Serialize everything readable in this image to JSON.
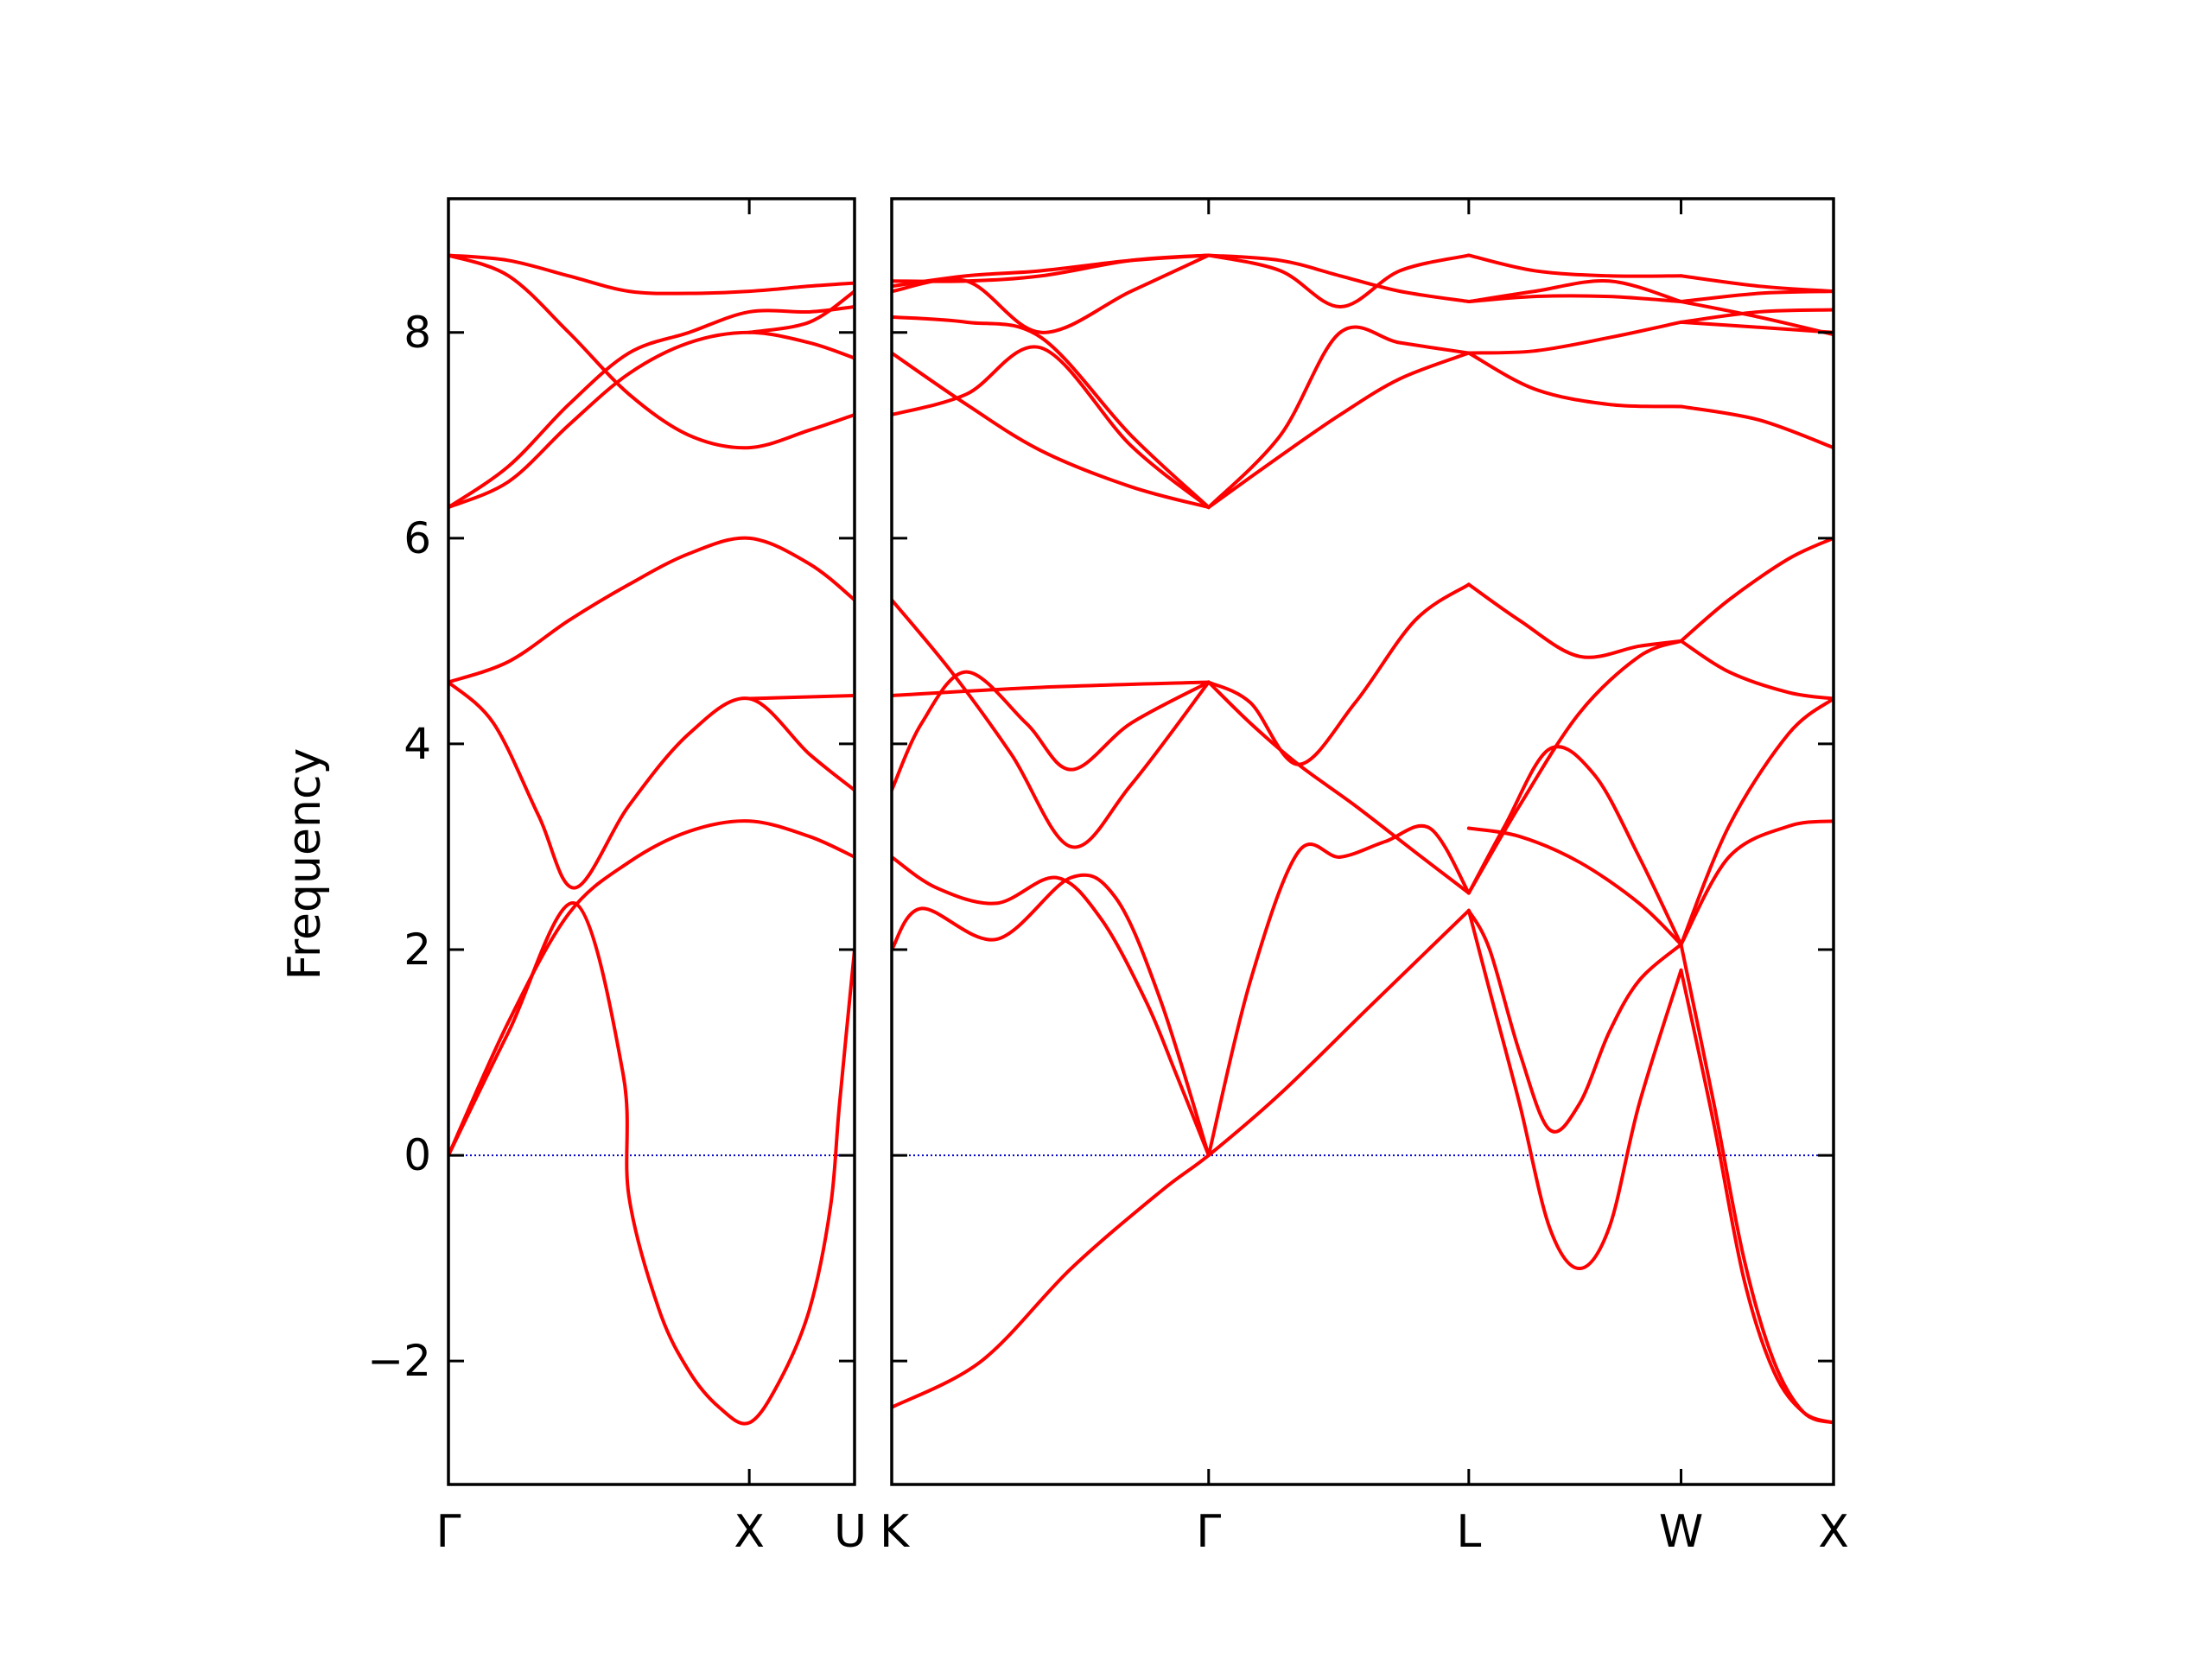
{
  "chart_data": {
    "type": "line",
    "title": "",
    "ylabel": "Frequency",
    "ylim": [
      -3.2,
      9.3
    ],
    "yticks": [
      -2,
      0,
      2,
      4,
      6,
      8
    ],
    "ytick_labels": [
      "−2",
      "0",
      "2",
      "4",
      "6",
      "8"
    ],
    "zero_line": {
      "value": 0,
      "color": "#0000cc",
      "style": "dotted"
    },
    "line_color": "#ff0000",
    "grid": false,
    "legend": "none",
    "panels": [
      {
        "name": "Gamma-X-U",
        "x_range": [
          0,
          1.35
        ],
        "high_symmetry_points": [
          {
            "label": "Γ",
            "x": 0
          },
          {
            "label": "X",
            "x": 1.0
          },
          {
            "label": "U",
            "x": 1.35
          }
        ],
        "bands": [
          {
            "x": [
              0,
              0.2,
              0.42,
              0.58,
              0.6,
              0.7,
              0.8,
              0.9,
              1.0,
              1.1,
              1.2,
              1.27,
              1.3,
              1.35
            ],
            "y": [
              0,
              1.2,
              2.45,
              0.8,
              -0.4,
              -1.5,
              -2.1,
              -2.45,
              -2.6,
              -2.2,
              -1.5,
              -0.5,
              0.5,
              2.0
            ]
          },
          {
            "x": [
              0,
              0.2,
              0.4,
              0.6,
              0.8,
              1.0,
              1.2,
              1.35
            ],
            "y": [
              0,
              1.3,
              2.35,
              2.85,
              3.15,
              3.25,
              3.1,
              2.9
            ]
          },
          {
            "x": [
              0,
              0.15,
              0.3,
              0.42,
              0.6,
              0.8,
              1.0,
              1.2,
              1.35
            ],
            "y": [
              4.6,
              4.2,
              3.3,
              2.6,
              3.4,
              4.1,
              4.44,
              3.9,
              3.55
            ]
          },
          {
            "x": [
              0,
              0.2,
              0.4,
              0.6,
              0.8,
              1.0,
              1.2,
              1.35
            ],
            "y": [
              4.6,
              4.8,
              5.2,
              5.55,
              5.85,
              6.0,
              5.75,
              5.4
            ]
          },
          {
            "x": [
              1.0,
              1.35
            ],
            "y": [
              4.44,
              4.47
            ]
          },
          {
            "x": [
              0,
              0.2,
              0.4,
              0.6,
              0.8,
              1.0,
              1.2,
              1.35
            ],
            "y": [
              6.3,
              6.55,
              7.1,
              7.6,
              7.9,
              8.0,
              7.9,
              7.75
            ]
          },
          {
            "x": [
              0,
              0.2,
              0.4,
              0.6,
              0.8,
              1.0,
              1.2,
              1.35
            ],
            "y": [
              6.3,
              6.7,
              7.3,
              7.8,
              8.0,
              8.2,
              8.2,
              8.25
            ]
          },
          {
            "x": [
              0,
              0.2,
              0.4,
              0.6,
              0.8,
              1.0,
              1.2,
              1.35
            ],
            "y": [
              8.75,
              8.55,
              8.0,
              7.4,
              7.0,
              6.88,
              7.05,
              7.2
            ]
          },
          {
            "x": [
              0,
              0.2,
              0.4,
              0.6,
              0.8,
              1.0,
              1.2,
              1.35
            ],
            "y": [
              8.75,
              8.7,
              8.55,
              8.4,
              8.38,
              8.4,
              8.45,
              8.48
            ]
          },
          {
            "x": [
              1.0,
              1.2,
              1.35
            ],
            "y": [
              8.0,
              8.1,
              8.4
            ]
          }
        ]
      },
      {
        "name": "K-Gamma-L-W-X",
        "x_range": [
          0,
          3.15
        ],
        "high_symmetry_points": [
          {
            "label": "K",
            "x": 0
          },
          {
            "label": "Γ",
            "x": 1.06
          },
          {
            "label": "L",
            "x": 1.93
          },
          {
            "label": "W",
            "x": 2.64
          },
          {
            "label": "X",
            "x": 3.15
          }
        ],
        "bands": [
          {
            "x": [
              0,
              0.3,
              0.6,
              0.9,
              1.06,
              1.3,
              1.6,
              1.93
            ],
            "y": [
              -2.45,
              -2.0,
              -1.1,
              -0.35,
              0,
              0.6,
              1.45,
              2.38
            ]
          },
          {
            "x": [
              1.93,
              2.0,
              2.1,
              2.2,
              2.3,
              2.4,
              2.5,
              2.64
            ],
            "y": [
              2.38,
              1.6,
              0.5,
              -0.7,
              -1.1,
              -0.7,
              0.5,
              1.8
            ]
          },
          {
            "x": [
              2.64,
              2.75,
              2.85,
              2.95,
              3.05,
              3.15
            ],
            "y": [
              1.8,
              0.3,
              -1.2,
              -2.1,
              -2.5,
              -2.6
            ]
          },
          {
            "x": [
              1.93,
              2.0,
              2.1,
              2.2,
              2.3,
              2.4,
              2.5,
              2.64
            ],
            "y": [
              2.38,
              2.0,
              1.0,
              0.25,
              0.5,
              1.2,
              1.7,
              2.05
            ]
          },
          {
            "x": [
              2.64,
              2.75,
              2.85,
              2.95,
              3.05,
              3.15
            ],
            "y": [
              2.05,
              0.5,
              -1.0,
              -2.0,
              -2.5,
              -2.6
            ]
          },
          {
            "x": [
              0,
              0.1,
              0.35,
              0.6,
              0.75,
              0.9,
              1.06
            ],
            "y": [
              2.0,
              2.4,
              2.1,
              2.7,
              2.5,
              1.5,
              0
            ]
          },
          {
            "x": [
              0,
              0.15,
              0.35,
              0.55,
              0.7,
              0.85,
              0.95,
              1.06
            ],
            "y": [
              2.9,
              2.6,
              2.45,
              2.7,
              2.3,
              1.5,
              0.8,
              0
            ]
          },
          {
            "x": [
              1.06,
              1.2,
              1.36,
              1.5,
              1.65,
              1.8,
              1.93
            ],
            "y": [
              0,
              1.7,
              2.95,
              2.9,
              3.05,
              3.18,
              2.55
            ]
          },
          {
            "x": [
              1.93,
              2.05,
              2.2,
              2.35,
              2.5,
              2.64
            ],
            "y": [
              2.55,
              3.2,
              3.95,
              3.7,
              2.9,
              2.05
            ]
          },
          {
            "x": [
              1.93,
              2.1,
              2.3,
              2.5,
              2.64
            ],
            "y": [
              3.18,
              3.1,
              2.85,
              2.45,
              2.05
            ]
          },
          {
            "x": [
              2.64,
              2.8,
              3.0,
              3.15
            ],
            "y": [
              2.05,
              2.9,
              3.2,
              3.25
            ]
          },
          {
            "x": [
              2.64,
              2.8,
              3.0,
              3.15
            ],
            "y": [
              2.05,
              3.2,
              4.1,
              4.44
            ]
          },
          {
            "x": [
              0,
              0.2,
              0.4,
              0.6,
              0.8,
              1.06
            ],
            "y": [
              5.4,
              4.7,
              3.9,
              3.0,
              3.6,
              4.6
            ]
          },
          {
            "x": [
              0,
              0.1,
              0.25,
              0.45,
              0.6,
              0.8,
              1.06
            ],
            "y": [
              3.55,
              4.2,
              4.7,
              4.2,
              3.75,
              4.2,
              4.6
            ]
          },
          {
            "x": [
              0,
              0.5,
              1.06
            ],
            "y": [
              4.47,
              4.55,
              4.6
            ]
          },
          {
            "x": [
              1.06,
              1.2,
              1.36,
              1.55,
              1.75,
              1.93
            ],
            "y": [
              4.6,
              4.2,
              3.8,
              3.4,
              2.95,
              2.55
            ]
          },
          {
            "x": [
              1.06,
              1.2,
              1.36,
              1.55,
              1.75,
              1.93
            ],
            "y": [
              4.6,
              4.4,
              3.8,
              4.4,
              5.2,
              5.55
            ]
          },
          {
            "x": [
              1.93,
              2.1,
              2.3,
              2.5,
              2.64
            ],
            "y": [
              5.55,
              5.2,
              4.85,
              4.95,
              5.0
            ]
          },
          {
            "x": [
              1.93,
              2.1,
              2.3,
              2.5,
              2.64
            ],
            "y": [
              2.55,
              3.4,
              4.3,
              4.85,
              5.0
            ]
          },
          {
            "x": [
              2.64,
              2.8,
              3.0,
              3.15
            ],
            "y": [
              5.0,
              5.4,
              5.8,
              6.0
            ]
          },
          {
            "x": [
              2.64,
              2.8,
              3.0,
              3.15
            ],
            "y": [
              5.0,
              4.7,
              4.5,
              4.44
            ]
          },
          {
            "x": [
              0,
              0.25,
              0.5,
              0.8,
              1.06
            ],
            "y": [
              7.2,
              7.4,
              7.85,
              6.9,
              6.3
            ]
          },
          {
            "x": [
              0,
              0.25,
              0.5,
              0.8,
              1.06
            ],
            "y": [
              7.8,
              7.3,
              6.85,
              6.5,
              6.3
            ]
          },
          {
            "x": [
              0,
              0.25,
              0.5,
              0.8,
              1.06
            ],
            "y": [
              8.15,
              8.1,
              7.95,
              7.0,
              6.3
            ]
          },
          {
            "x": [
              0,
              0.25,
              0.5,
              0.8,
              1.06
            ],
            "y": [
              8.4,
              8.5,
              8.0,
              8.4,
              8.75
            ]
          },
          {
            "x": [
              0,
              0.25,
              0.5,
              0.8,
              1.06
            ],
            "y": [
              8.45,
              8.55,
              8.6,
              8.7,
              8.75
            ]
          },
          {
            "x": [
              0,
              0.25,
              0.5,
              0.8,
              1.06
            ],
            "y": [
              8.5,
              8.5,
              8.55,
              8.7,
              8.75
            ]
          },
          {
            "x": [
              1.06,
              1.3,
              1.5,
              1.7,
              1.93
            ],
            "y": [
              6.3,
              7.0,
              8.0,
              7.9,
              7.8
            ]
          },
          {
            "x": [
              1.06,
              1.3,
              1.5,
              1.7,
              1.93
            ],
            "y": [
              6.3,
              6.8,
              7.2,
              7.55,
              7.8
            ]
          },
          {
            "x": [
              1.06,
              1.3,
              1.5,
              1.7,
              1.93
            ],
            "y": [
              8.75,
              8.6,
              8.25,
              8.6,
              8.75
            ]
          },
          {
            "x": [
              1.06,
              1.3,
              1.5,
              1.7,
              1.93
            ],
            "y": [
              8.75,
              8.7,
              8.55,
              8.4,
              8.3
            ]
          },
          {
            "x": [
              1.93,
              2.15,
              2.4,
              2.64
            ],
            "y": [
              7.8,
              7.45,
              7.3,
              7.28
            ]
          },
          {
            "x": [
              1.93,
              2.15,
              2.4,
              2.64
            ],
            "y": [
              7.8,
              7.82,
              7.95,
              8.1
            ]
          },
          {
            "x": [
              1.93,
              2.15,
              2.4,
              2.64
            ],
            "y": [
              8.75,
              8.6,
              8.55,
              8.55
            ]
          },
          {
            "x": [
              1.93,
              2.15,
              2.4,
              2.64
            ],
            "y": [
              8.3,
              8.4,
              8.5,
              8.3
            ]
          },
          {
            "x": [
              1.93,
              2.15,
              2.4,
              2.64
            ],
            "y": [
              8.3,
              8.35,
              8.35,
              8.3
            ]
          },
          {
            "x": [
              2.64,
              2.9,
              3.15
            ],
            "y": [
              7.28,
              7.15,
              6.88
            ]
          },
          {
            "x": [
              2.64,
              2.9,
              3.15
            ],
            "y": [
              8.1,
              8.2,
              8.22
            ]
          },
          {
            "x": [
              2.64,
              2.9,
              3.15
            ],
            "y": [
              8.1,
              8.05,
              8.0
            ]
          },
          {
            "x": [
              2.64,
              2.9,
              3.15
            ],
            "y": [
              8.55,
              8.45,
              8.4
            ]
          },
          {
            "x": [
              2.64,
              2.9,
              3.15
            ],
            "y": [
              8.3,
              8.15,
              7.98
            ]
          },
          {
            "x": [
              2.64,
              2.9,
              3.15
            ],
            "y": [
              8.3,
              8.38,
              8.4
            ]
          }
        ]
      }
    ]
  }
}
